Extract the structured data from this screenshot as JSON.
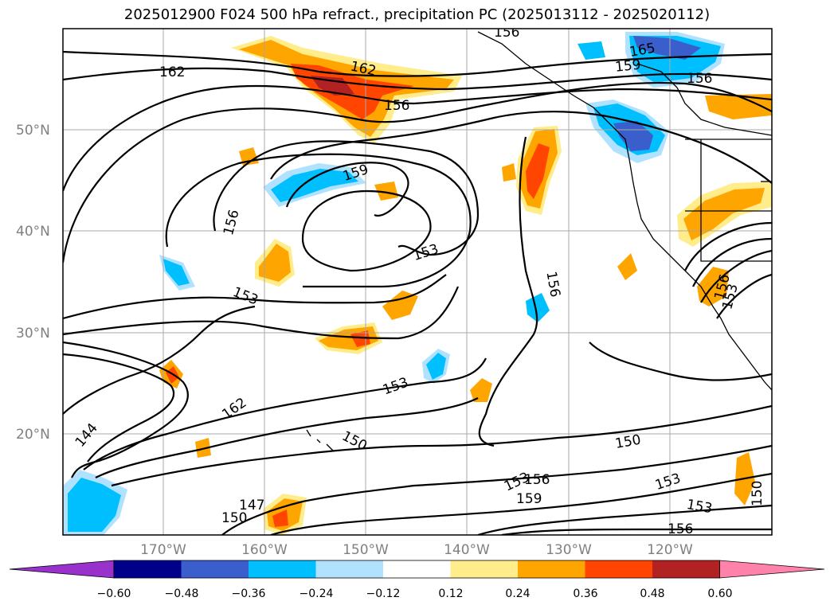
{
  "title": "2025012900 F024 500 hPa refract., precipitation PC (2025013112 - 2025020112)",
  "latitude_labels": [
    "50°N",
    "40°N",
    "30°N",
    "20°N"
  ],
  "longitude_labels": [
    "170°W",
    "160°W",
    "150°W",
    "140°W",
    "130°W",
    "120°W"
  ],
  "contour_labels": [
    "162",
    "162",
    "165",
    "159",
    "156",
    "156",
    "159",
    "156",
    "153",
    "153",
    "156",
    "153",
    "162",
    "144",
    "150",
    "147",
    "150",
    "153",
    "156",
    "159",
    "150",
    "153",
    "153",
    "156",
    "150",
    "156",
    "153",
    "156"
  ],
  "colorbar": {
    "tick_labels": [
      "−0.60",
      "−0.48",
      "−0.36",
      "−0.24",
      "−0.12",
      "0.12",
      "0.24",
      "0.36",
      "0.48",
      "0.60"
    ],
    "colors": [
      "#9932cc",
      "#00008b",
      "#3a5fcd",
      "#00bfff",
      "#b0e2ff",
      "#ffffff",
      "#ffec8b",
      "#ffa500",
      "#ff4500",
      "#b22222",
      "#ff82ab"
    ]
  },
  "colors": {
    "positive_light": "#ffec8b",
    "positive_mid": "#ffa500",
    "positive_strong": "#ff4500",
    "positive_max": "#b22222",
    "negative_light": "#b0e2ff",
    "negative_mid": "#00bfff",
    "negative_strong": "#3a5fcd",
    "negative_max": "#00008b"
  }
}
